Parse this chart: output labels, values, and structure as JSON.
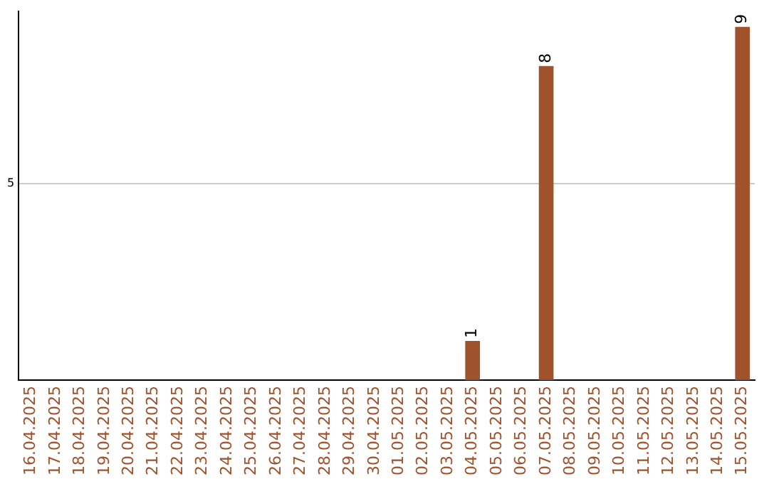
{
  "chart_data": {
    "type": "bar",
    "categories": [
      "16.04.2025",
      "17.04.2025",
      "18.04.2025",
      "19.04.2025",
      "20.04.2025",
      "21.04.2025",
      "22.04.2025",
      "23.04.2025",
      "24.04.2025",
      "25.04.2025",
      "26.04.2025",
      "27.04.2025",
      "28.04.2025",
      "29.04.2025",
      "30.04.2025",
      "01.05.2025",
      "02.05.2025",
      "03.05.2025",
      "04.05.2025",
      "05.05.2025",
      "06.05.2025",
      "07.05.2025",
      "08.05.2025",
      "09.05.2025",
      "10.05.2025",
      "11.05.2025",
      "12.05.2025",
      "13.05.2025",
      "14.05.2025",
      "15.05.2025"
    ],
    "values": [
      null,
      null,
      null,
      null,
      null,
      null,
      null,
      null,
      null,
      null,
      null,
      null,
      null,
      null,
      null,
      null,
      null,
      null,
      1,
      null,
      null,
      8,
      null,
      null,
      null,
      null,
      null,
      null,
      null,
      9
    ],
    "value_labels": [
      null,
      null,
      null,
      null,
      null,
      null,
      null,
      null,
      null,
      null,
      null,
      null,
      null,
      null,
      null,
      null,
      null,
      null,
      "1",
      null,
      null,
      "8",
      null,
      null,
      null,
      null,
      null,
      null,
      null,
      "9"
    ],
    "color": "#a0522d",
    "ylim": [
      0,
      9.4
    ],
    "yticks": [
      5
    ],
    "grid": "y",
    "legend": false
  }
}
